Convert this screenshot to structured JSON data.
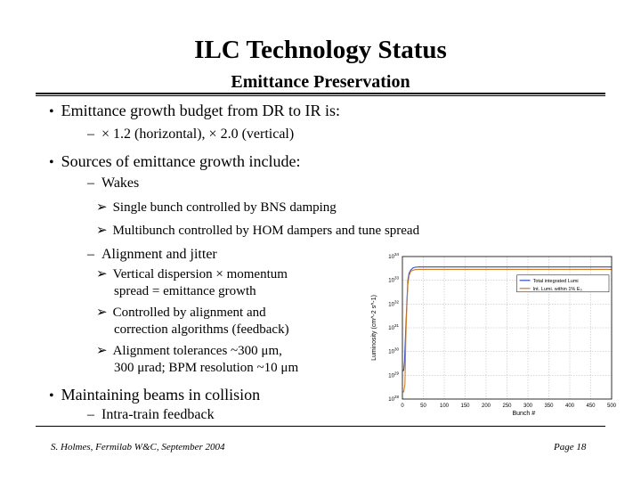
{
  "slide": {
    "title": "ILC Technology Status",
    "subtitle": "Emittance Preservation",
    "bullets": {
      "b1": "Emittance growth budget from DR to IR is:",
      "b1_sub": "× 1.2 (horizontal), × 2.0 (vertical)",
      "b2": "Sources of emittance growth include:",
      "wakes": "Wakes",
      "wakes_1": "Single bunch controlled by BNS damping",
      "wakes_2": "Multibunch controlled by HOM dampers and tune spread",
      "align": "Alignment and jitter",
      "align_1a": "Vertical dispersion  × momentum",
      "align_1b": "spread = emittance growth",
      "align_2a": "Controlled by alignment and",
      "align_2b": "correction algorithms (feedback)",
      "align_3a": "Alignment tolerances ~300 μm,",
      "align_3b": "300 μrad; BPM resolution ~10 μm",
      "b3": "Maintaining beams in collision",
      "b3_sub": "Intra-train feedback"
    },
    "footer_left": "S. Holmes, Fermilab W&C, September 2004",
    "footer_right": "Page  18"
  },
  "chart_data": {
    "type": "line",
    "title": "",
    "xlabel": "Bunch #",
    "ylabel": "Luminosity (cm^-2 s^-1)",
    "xlim": [
      0,
      500
    ],
    "ylim_log10": [
      28,
      34
    ],
    "x_ticks": [
      "0",
      "50",
      "100",
      "150",
      "200",
      "250",
      "300",
      "350",
      "400",
      "450",
      "500"
    ],
    "y_ticks": [
      "10^28",
      "10^29",
      "10^30",
      "10^31",
      "10^32",
      "10^33",
      "10^34"
    ],
    "series": [
      {
        "name": "Total integrated Lumi",
        "color": "#2f4fc4",
        "x": [
          0,
          3,
          5,
          8,
          10,
          13,
          16,
          20,
          25,
          30,
          40,
          60,
          100,
          200,
          300,
          400,
          500
        ],
        "log10_y": [
          29.2,
          29.2,
          29.6,
          31.0,
          31.8,
          33.0,
          33.3,
          33.43,
          33.52,
          33.55,
          33.56,
          33.56,
          33.56,
          33.56,
          33.56,
          33.56,
          33.56
        ]
      },
      {
        "name": "Int. Lumi. within 1% E₀",
        "color": "#d07a20",
        "x": [
          0,
          3,
          6,
          8,
          10,
          13,
          16,
          20,
          25,
          30,
          40,
          60,
          100,
          200,
          300,
          400,
          500
        ],
        "log10_y": [
          28.3,
          28.3,
          28.6,
          30.5,
          31.6,
          32.8,
          33.2,
          33.38,
          33.42,
          33.45,
          33.46,
          33.46,
          33.46,
          33.46,
          33.46,
          33.46,
          33.46
        ]
      }
    ],
    "legend": [
      "Total integrated Lumi",
      "Int. Lumi. within 1% E₀"
    ],
    "legend_position": "right"
  }
}
